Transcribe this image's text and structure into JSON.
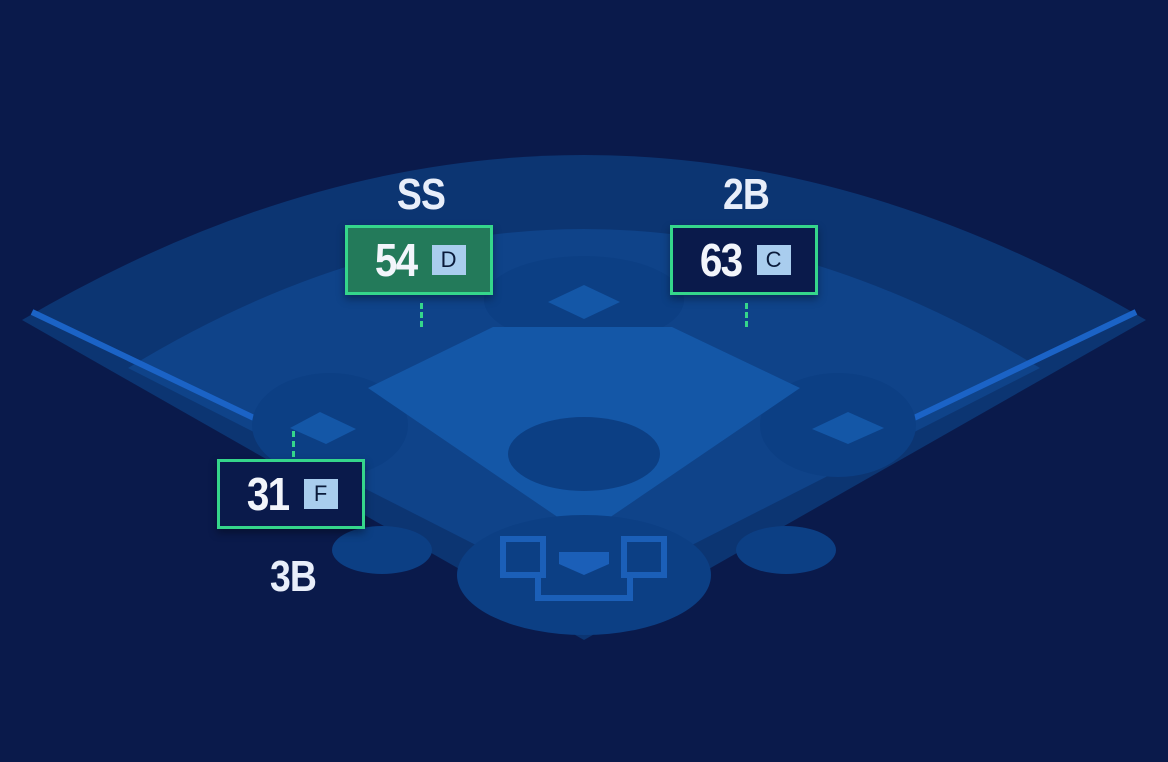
{
  "colors": {
    "background": "#0a1a4b",
    "outfield_outer": "#0c3572",
    "outfield_grass": "#0f4389",
    "infield": "#1457a7",
    "dirt": "#0c3f84",
    "foul_line": "#1b63c6",
    "accent_border": "#35d68b",
    "highlight_fill": "#237a5a",
    "grade_badge": "#a9cdee"
  },
  "positions": [
    {
      "label": "SS",
      "score": "54",
      "grade": "D",
      "highlighted": true
    },
    {
      "label": "2B",
      "score": "63",
      "grade": "C",
      "highlighted": false
    },
    {
      "label": "3B",
      "score": "31",
      "grade": "F",
      "highlighted": false
    }
  ]
}
